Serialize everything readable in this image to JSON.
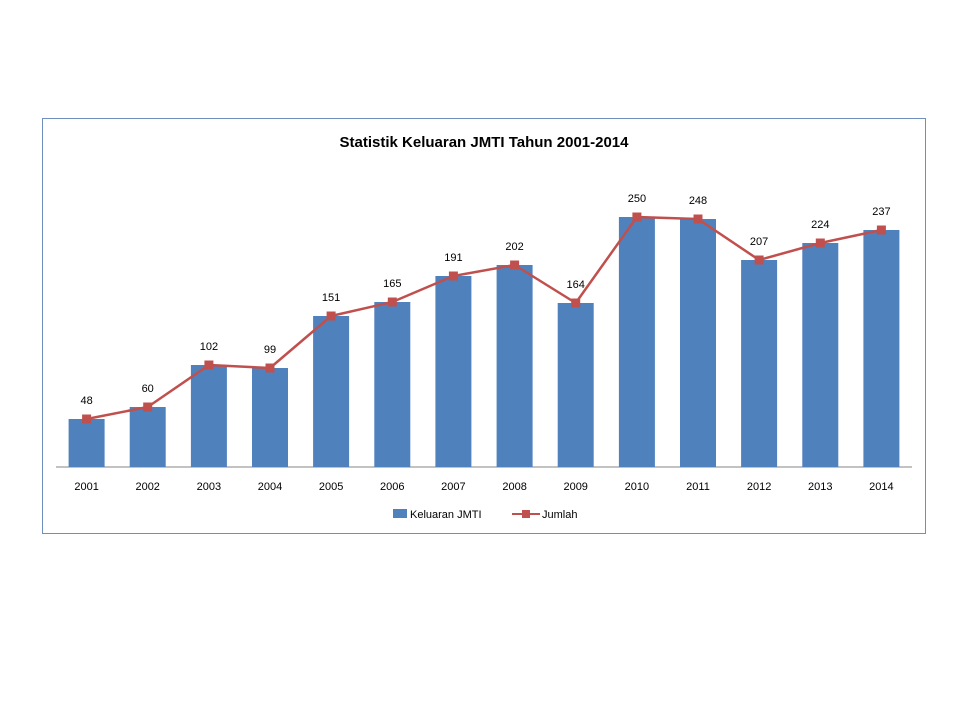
{
  "chart_data": {
    "type": "bar",
    "title": "Statistik Keluaran JMTI Tahun 2001-2014",
    "categories": [
      "2001",
      "2002",
      "2003",
      "2004",
      "2005",
      "2006",
      "2007",
      "2008",
      "2009",
      "2010",
      "2011",
      "2012",
      "2013",
      "2014"
    ],
    "series": [
      {
        "name": "Keluaran JMTI",
        "type": "bar",
        "color": "#4f81bd",
        "values": [
          48,
          60,
          102,
          99,
          151,
          165,
          191,
          202,
          164,
          250,
          248,
          207,
          224,
          237
        ]
      },
      {
        "name": "Jumlah",
        "type": "line",
        "marker": "square",
        "color": "#c0504d",
        "values": [
          48,
          60,
          102,
          99,
          151,
          165,
          191,
          202,
          164,
          250,
          248,
          207,
          224,
          237
        ]
      }
    ],
    "ylim": [
      0,
      250
    ],
    "grid": false,
    "legend": "bottom",
    "data_labels": true
  }
}
